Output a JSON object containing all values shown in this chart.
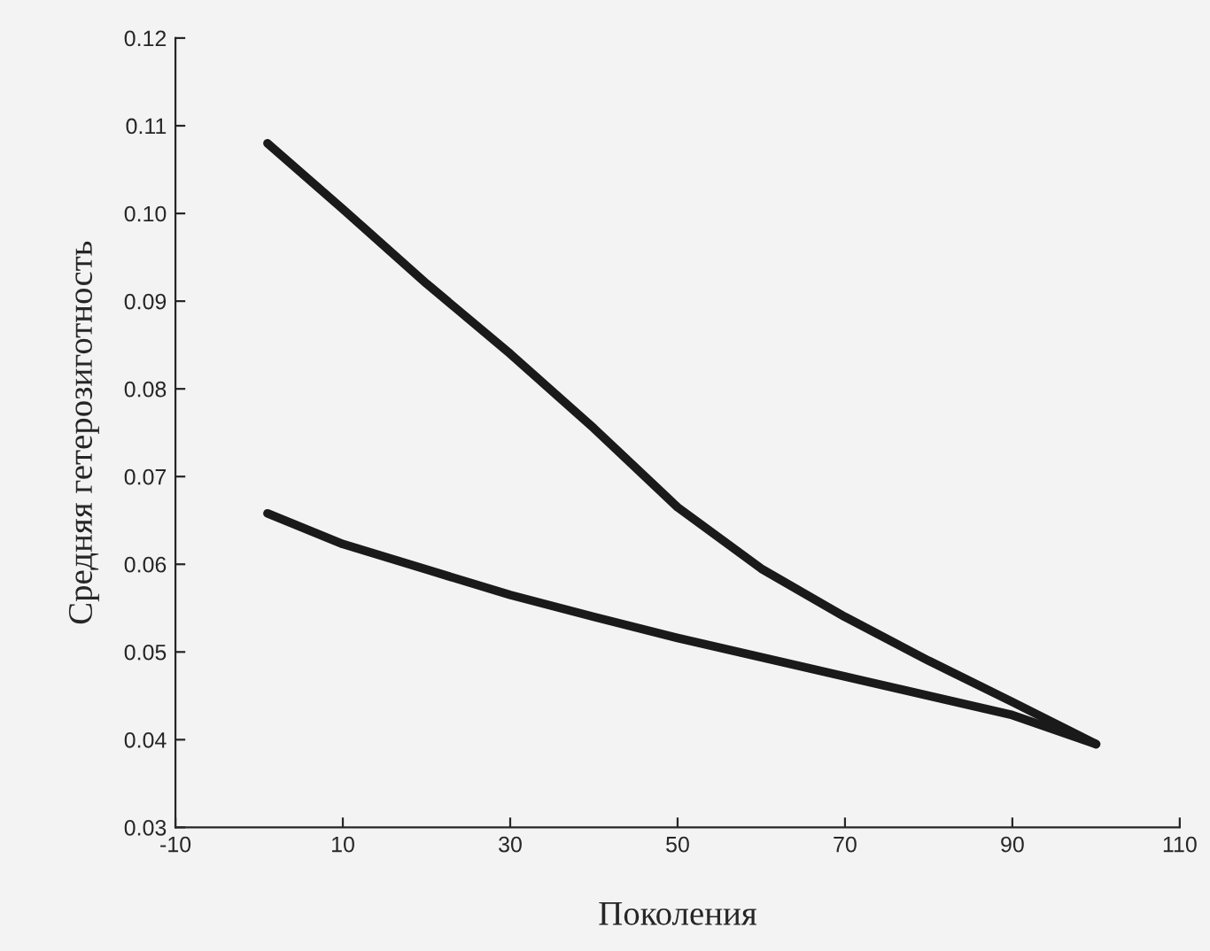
{
  "chart_data": {
    "type": "line",
    "xlabel": "Поколения",
    "ylabel": "Средняя гетерозиготность",
    "x": [
      1,
      10,
      20,
      30,
      40,
      50,
      60,
      70,
      80,
      90,
      100
    ],
    "series": [
      {
        "color": "#1a1a1a",
        "values": [
          0.108,
          0.1005,
          0.092,
          0.084,
          0.0755,
          0.0665,
          0.0595,
          0.054,
          0.049,
          0.0443,
          0.0395
        ]
      },
      {
        "color": "#1a1a1a",
        "values": [
          0.0658,
          0.0623,
          0.0594,
          0.0565,
          0.054,
          0.0516,
          0.0494,
          0.0472,
          0.045,
          0.0428,
          0.0395
        ]
      }
    ],
    "xlim": [
      -10,
      110
    ],
    "xticks": [
      -10,
      10,
      30,
      50,
      70,
      90,
      110
    ],
    "ylim": [
      0.03,
      0.12
    ],
    "yticks": [
      0.03,
      0.04,
      0.05,
      0.06,
      0.07,
      0.08,
      0.09,
      {
        "value": 0.1,
        "label": "0.10"
      },
      0.11,
      0.12
    ],
    "grid": false,
    "legend": false
  }
}
